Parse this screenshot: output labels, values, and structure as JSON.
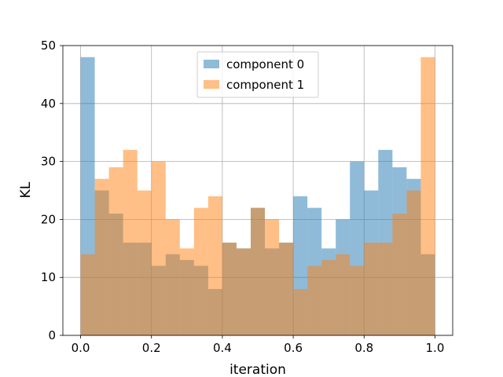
{
  "chart_data": {
    "type": "bar",
    "title": "",
    "xlabel": "iteration",
    "ylabel": "KL",
    "xlim": [
      -0.05,
      1.05
    ],
    "ylim": [
      0,
      50
    ],
    "xticks": [
      "0.0",
      "0.2",
      "0.4",
      "0.6",
      "0.8",
      "1.0"
    ],
    "yticks": [
      "0",
      "10",
      "20",
      "30",
      "40",
      "50"
    ],
    "grid": true,
    "legend_position": "top-center",
    "bins": 25,
    "bin_start": 0.0,
    "bin_width": 0.04,
    "series": [
      {
        "name": "component 0",
        "color": "#1f77b4",
        "opacity": 0.5,
        "values": [
          48,
          25,
          21,
          16,
          16,
          12,
          14,
          13,
          12,
          8,
          16,
          15,
          22,
          15,
          16,
          24,
          22,
          15,
          20,
          30,
          25,
          32,
          29,
          27,
          14
        ]
      },
      {
        "name": "component 1",
        "color": "#ff7f0e",
        "opacity": 0.5,
        "values": [
          14,
          27,
          29,
          32,
          25,
          30,
          20,
          15,
          22,
          24,
          16,
          15,
          22,
          20,
          16,
          8,
          12,
          13,
          14,
          12,
          16,
          16,
          21,
          25,
          48
        ]
      }
    ]
  }
}
